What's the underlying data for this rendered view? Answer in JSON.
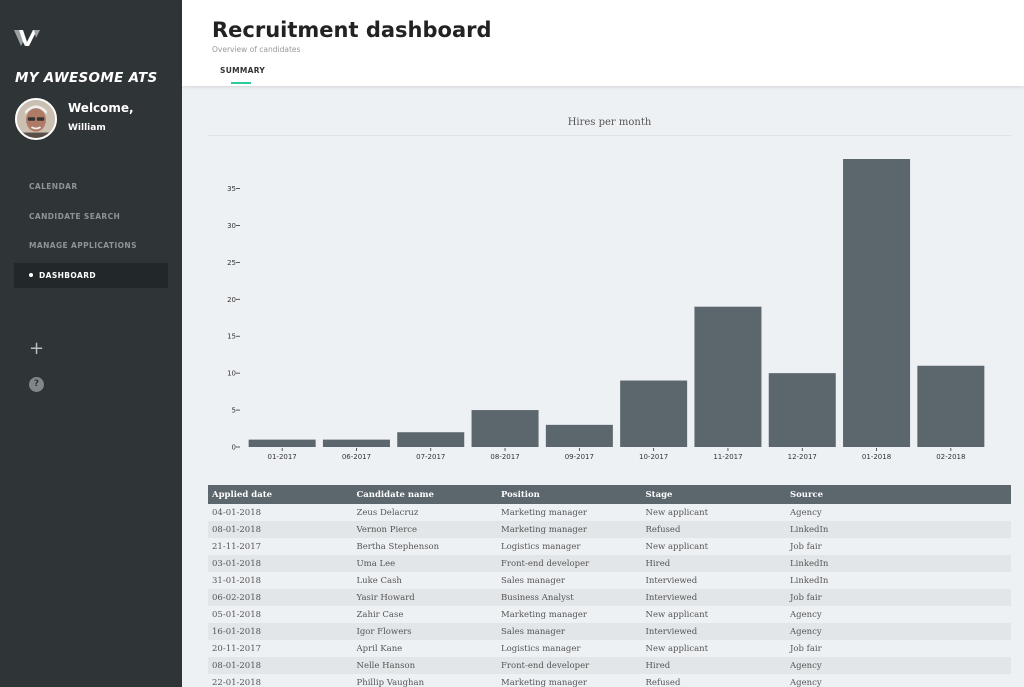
{
  "sidebar": {
    "logo_icon": "w-logo-icon",
    "app_name": "MY AWESOME ATS",
    "welcome": "Welcome,",
    "username": "William",
    "nav": [
      {
        "label": "CALENDAR",
        "active": false
      },
      {
        "label": "CANDIDATE SEARCH",
        "active": false
      },
      {
        "label": "MANAGE APPLICATIONS",
        "active": false
      },
      {
        "label": "DASHBOARD",
        "active": true
      }
    ],
    "add_icon": "plus-icon",
    "help_icon": "help-icon",
    "help_symbol": "?"
  },
  "header": {
    "title": "Recruitment dashboard",
    "subtitle": "Overview of candidates",
    "tab": "SUMMARY",
    "accent": "#2ecc9a"
  },
  "chart_data": {
    "type": "bar",
    "title": "Hires per month",
    "categories": [
      "01-2017",
      "06-2017",
      "07-2017",
      "08-2017",
      "09-2017",
      "10-2017",
      "11-2017",
      "12-2017",
      "01-2018",
      "02-2018"
    ],
    "values": [
      1,
      1,
      2,
      5,
      3,
      9,
      19,
      10,
      39,
      11
    ],
    "yticks": [
      0,
      5,
      10,
      15,
      20,
      25,
      30,
      35
    ],
    "ylim": [
      0,
      39
    ],
    "xlabel": "",
    "ylabel": "",
    "bar_color": "#5c666d"
  },
  "table": {
    "headers": [
      "Applied date",
      "Candidate name",
      "Position",
      "Stage",
      "Source"
    ],
    "rows": [
      [
        "04-01-2018",
        "Zeus Delacruz",
        "Marketing manager",
        "New applicant",
        "Agency"
      ],
      [
        "08-01-2018",
        "Vernon Pierce",
        "Marketing manager",
        "Refused",
        "LinkedIn"
      ],
      [
        "21-11-2017",
        "Bertha Stephenson",
        "Logistics manager",
        "New applicant",
        "Job fair"
      ],
      [
        "03-01-2018",
        "Uma Lee",
        "Front-end developer",
        "Hired",
        "LinkedIn"
      ],
      [
        "31-01-2018",
        "Luke Cash",
        "Sales manager",
        "Interviewed",
        "LinkedIn"
      ],
      [
        "06-02-2018",
        "Yasir Howard",
        "Business Analyst",
        "Interviewed",
        "Job fair"
      ],
      [
        "05-01-2018",
        "Zahir Case",
        "Marketing manager",
        "New applicant",
        "Agency"
      ],
      [
        "16-01-2018",
        "Igor Flowers",
        "Sales manager",
        "Interviewed",
        "Agency"
      ],
      [
        "20-11-2017",
        "April Kane",
        "Logistics manager",
        "New applicant",
        "Job fair"
      ],
      [
        "08-01-2018",
        "Nelle Hanson",
        "Front-end developer",
        "Hired",
        "Agency"
      ],
      [
        "22-01-2018",
        "Phillip Vaughan",
        "Marketing manager",
        "Refused",
        "Agency"
      ]
    ]
  }
}
